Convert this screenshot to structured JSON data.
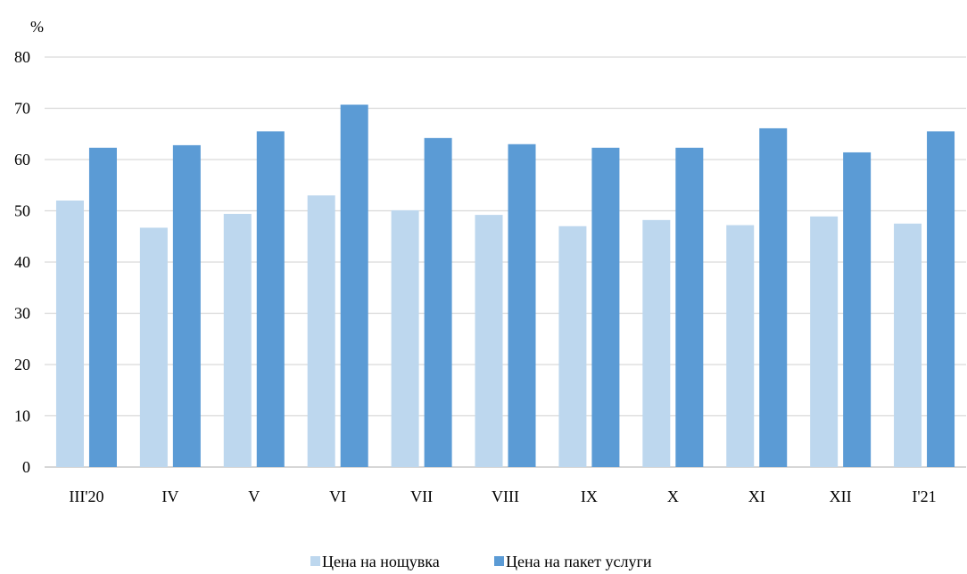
{
  "chart_data": {
    "type": "bar",
    "y_unit": "%",
    "categories": [
      "III'20",
      "IV",
      "V",
      "VI",
      "VII",
      "VIII",
      "IX",
      "X",
      "XI",
      "XII",
      "I'21"
    ],
    "series": [
      {
        "name": "Цена на нощувка",
        "color": "#bdd7ee",
        "values": [
          52.0,
          46.7,
          49.4,
          53.0,
          50.1,
          49.2,
          47.0,
          48.2,
          47.2,
          48.9,
          47.5
        ]
      },
      {
        "name": "Цена на пакет услуги",
        "color": "#5b9bd5",
        "values": [
          62.3,
          62.8,
          65.5,
          70.7,
          64.2,
          63.0,
          62.3,
          62.3,
          66.1,
          61.4,
          65.5
        ]
      }
    ],
    "ylim": [
      0,
      80
    ],
    "yticks": [
      0,
      10,
      20,
      30,
      40,
      50,
      60,
      70,
      80
    ],
    "grid": true,
    "legend_position": "bottom"
  }
}
